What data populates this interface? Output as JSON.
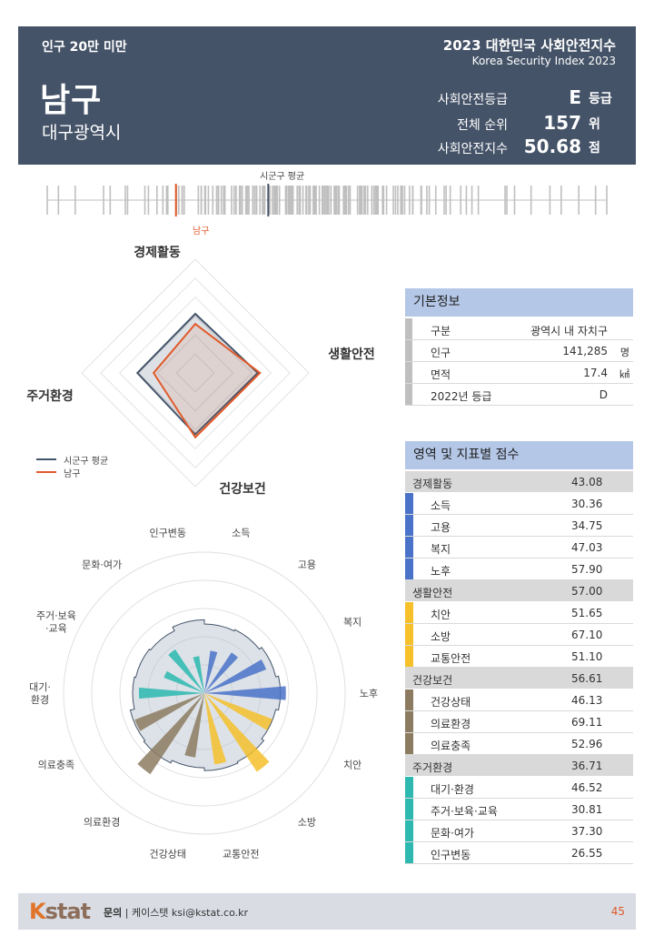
{
  "header": {
    "category": "인구 20만 미만",
    "region_name": "남구",
    "city": "대구광역시",
    "report_title": "2023 대한민국 사회안전지수",
    "report_subtitle": "Korea Security Index 2023",
    "metrics": [
      {
        "label": "사회안전등급",
        "value": "E",
        "unit": "등급"
      },
      {
        "label": "전체 순위",
        "value": "157",
        "unit": "위"
      },
      {
        "label": "사회안전지수",
        "value": "50.68",
        "unit": "점"
      }
    ]
  },
  "strip": {
    "avg_label": "시군구 평균",
    "region_label": "남구",
    "region_position": 0.23,
    "avg_position": 0.395,
    "colors": {
      "region": "#e05a2a",
      "avg": "#44546a",
      "tick": "#bfbfbf"
    }
  },
  "radar": {
    "axes": [
      "경제활동",
      "생활안전",
      "건강보건",
      "주거환경"
    ],
    "scale_max": 100,
    "series": [
      {
        "name": "시군구 평균",
        "values": [
          52,
          55,
          54,
          51
        ],
        "color": "#44546a"
      },
      {
        "name": "남구",
        "values": [
          43.08,
          57.0,
          56.61,
          36.71
        ],
        "color": "#e05a2a"
      }
    ]
  },
  "polar": {
    "labels": [
      "소득",
      "고용",
      "복지",
      "노후",
      "치안",
      "소방",
      "교통안전",
      "건강상태",
      "의료환경",
      "의료충족",
      "대기·환경",
      "주거·보육·교육",
      "문화·여가",
      "인구변동"
    ],
    "label_lines": [
      [
        "소득"
      ],
      [
        "고용"
      ],
      [
        "복지"
      ],
      [
        "노후"
      ],
      [
        "치안"
      ],
      [
        "소방"
      ],
      [
        "교통안전"
      ],
      [
        "건강상태"
      ],
      [
        "의료환경"
      ],
      [
        "의료충족"
      ],
      [
        "대기·",
        "환경"
      ],
      [
        "주거·보육",
        "·교육"
      ],
      [
        "문화·여가"
      ],
      [
        "인구변동"
      ]
    ],
    "values": [
      30.36,
      34.75,
      47.03,
      57.9,
      51.65,
      67.1,
      51.1,
      46.13,
      69.11,
      52.96,
      46.52,
      30.81,
      37.3,
      26.55
    ],
    "average": [
      49,
      50,
      52,
      54,
      52,
      54,
      55,
      53,
      55,
      54,
      51,
      50,
      49,
      52
    ],
    "sector_colors": [
      "#4a72c8",
      "#4a72c8",
      "#4a72c8",
      "#4a72c8",
      "#f5c02a",
      "#f5c02a",
      "#f5c02a",
      "#8c7b60",
      "#8c7b60",
      "#8c7b60",
      "#2db8b0",
      "#2db8b0",
      "#2db8b0",
      "#2db8b0"
    ],
    "scale_max": 100
  },
  "basic_info": {
    "title": "기본정보",
    "rows": [
      {
        "key": "구분",
        "value": "광역시 내 자치구",
        "unit": ""
      },
      {
        "key": "인구",
        "value": "141,285",
        "unit": "명"
      },
      {
        "key": "면적",
        "value": "17.4",
        "unit": "㎢"
      },
      {
        "key": "2022년 등급",
        "value": "D",
        "unit": ""
      }
    ]
  },
  "scores": {
    "title": "영역 및 지표별 점수",
    "sections": [
      {
        "name": "경제활동",
        "score": "43.08",
        "color": "#4a72c8",
        "items": [
          {
            "name": "소득",
            "score": "30.36"
          },
          {
            "name": "고용",
            "score": "34.75"
          },
          {
            "name": "복지",
            "score": "47.03"
          },
          {
            "name": "노후",
            "score": "57.90"
          }
        ]
      },
      {
        "name": "생활안전",
        "score": "57.00",
        "color": "#f5c02a",
        "items": [
          {
            "name": "치안",
            "score": "51.65"
          },
          {
            "name": "소방",
            "score": "67.10"
          },
          {
            "name": "교통안전",
            "score": "51.10"
          }
        ]
      },
      {
        "name": "건강보건",
        "score": "56.61",
        "color": "#8c7b60",
        "items": [
          {
            "name": "건강상태",
            "score": "46.13"
          },
          {
            "name": "의료환경",
            "score": "69.11"
          },
          {
            "name": "의료충족",
            "score": "52.96"
          }
        ]
      },
      {
        "name": "주거환경",
        "score": "36.71",
        "color": "#2db8b0",
        "items": [
          {
            "name": "대기·환경",
            "score": "46.52"
          },
          {
            "name": "주거·보육·교육",
            "score": "30.81"
          },
          {
            "name": "문화·여가",
            "score": "37.30"
          },
          {
            "name": "인구변동",
            "score": "26.55"
          }
        ]
      }
    ]
  },
  "footer": {
    "logo_k": "K",
    "logo_rest": "stat",
    "contact_label": "문의",
    "contact_text": "| 케이스탯 ksi@kstat.co.kr",
    "page_number": "45"
  }
}
